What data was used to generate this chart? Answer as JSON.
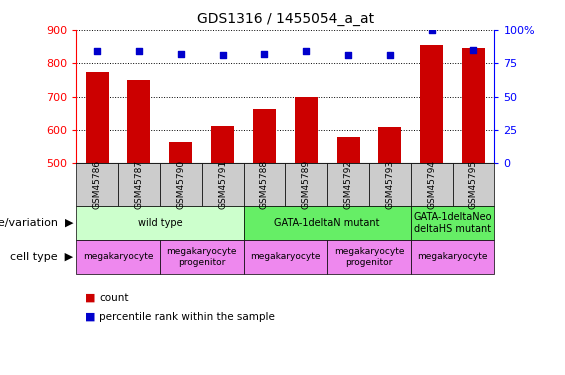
{
  "title": "GDS1316 / 1455054_a_at",
  "samples": [
    "GSM45786",
    "GSM45787",
    "GSM45790",
    "GSM45791",
    "GSM45788",
    "GSM45789",
    "GSM45792",
    "GSM45793",
    "GSM45794",
    "GSM45795"
  ],
  "counts": [
    775,
    750,
    562,
    612,
    662,
    700,
    578,
    608,
    855,
    845
  ],
  "percentiles": [
    84,
    84,
    82,
    81,
    82,
    84,
    81,
    81,
    100,
    85
  ],
  "ylim_left": [
    500,
    900
  ],
  "ylim_right": [
    0,
    100
  ],
  "yticks_left": [
    500,
    600,
    700,
    800,
    900
  ],
  "yticks_right": [
    0,
    25,
    50,
    75,
    100
  ],
  "bar_color": "#cc0000",
  "dot_color": "#0000cc",
  "background_color": "#ffffff",
  "sample_box_color": "#cccccc",
  "genotype_groups": [
    {
      "label": "wild type",
      "start": 0,
      "end": 4,
      "color": "#ccffcc"
    },
    {
      "label": "GATA-1deltaN mutant",
      "start": 4,
      "end": 8,
      "color": "#66ee66"
    },
    {
      "label": "GATA-1deltaNeo\ndeltaHS mutant",
      "start": 8,
      "end": 10,
      "color": "#66ee66"
    }
  ],
  "cell_type_groups": [
    {
      "label": "megakaryocyte",
      "start": 0,
      "end": 2,
      "color": "#ee88ee"
    },
    {
      "label": "megakaryocyte\nprogenitor",
      "start": 2,
      "end": 4,
      "color": "#ee88ee"
    },
    {
      "label": "megakaryocyte",
      "start": 4,
      "end": 6,
      "color": "#ee88ee"
    },
    {
      "label": "megakaryocyte\nprogenitor",
      "start": 6,
      "end": 8,
      "color": "#ee88ee"
    },
    {
      "label": "megakaryocyte",
      "start": 8,
      "end": 10,
      "color": "#ee88ee"
    }
  ],
  "legend_count_label": "count",
  "legend_pct_label": "percentile rank within the sample",
  "row_label_genotype": "genotype/variation",
  "row_label_celltype": "cell type"
}
